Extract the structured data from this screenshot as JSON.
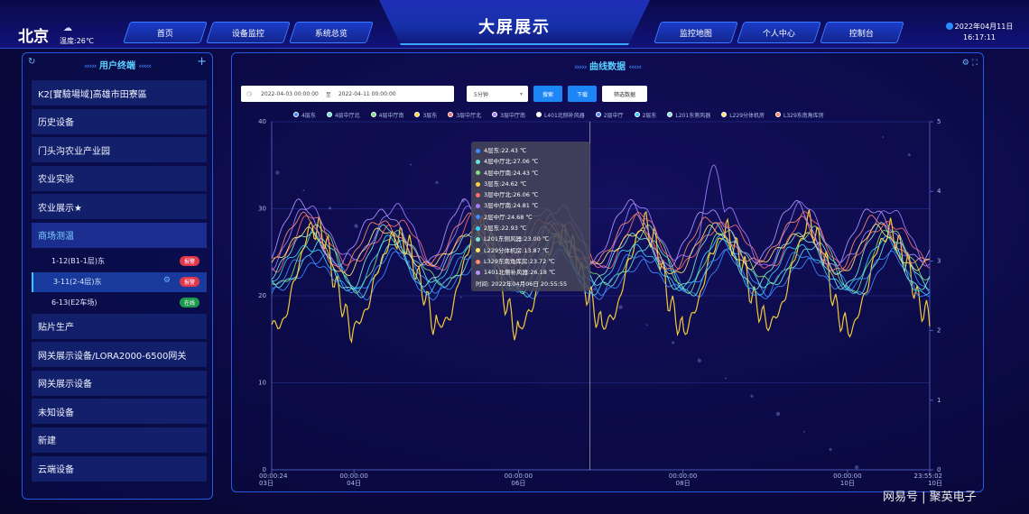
{
  "header": {
    "city": "北京",
    "temperature": "温度:26℃",
    "title": "大屏展示",
    "date": "2022年04月11日",
    "time": "16:17:11",
    "nav_left": [
      "首页",
      "设备监控",
      "系统总览"
    ],
    "nav_right": [
      "监控地图",
      "个人中心",
      "控制台"
    ]
  },
  "left_panel": {
    "title": "用户终端",
    "items": [
      {
        "label": "K2[實驗場域]高雄市田寮區"
      },
      {
        "label": "历史设备"
      },
      {
        "label": "门头沟农业产业园"
      },
      {
        "label": "农业实验"
      },
      {
        "label": "农业展示★"
      },
      {
        "label": "商场测温"
      }
    ],
    "sub_items": [
      {
        "label": "1-12(B1-1层)东",
        "badge": "报警",
        "badge_type": "red"
      },
      {
        "label": "3-11(2-4层)东",
        "badge": "报警",
        "badge_type": "red"
      },
      {
        "label": "6-13(E2车场)",
        "badge": "在线",
        "badge_type": "green"
      }
    ],
    "items_after": [
      {
        "label": "贴片生产"
      },
      {
        "label": "网关展示设备/LORA2000-6500网关"
      },
      {
        "label": "网关展示设备"
      },
      {
        "label": "未知设备"
      },
      {
        "label": "新建"
      },
      {
        "label": "云端设备"
      }
    ]
  },
  "right_panel": {
    "title": "曲线数据",
    "date_start": "2022-04-03 00:00:00",
    "date_sep": "至",
    "date_end": "2022-04-11 00:00:00",
    "interval": "5分钟",
    "btn_search": "搜索",
    "btn_download": "下载",
    "btn_filter": "筛选数据"
  },
  "chart_data": {
    "type": "line",
    "x_ticks": [
      {
        "time": "00:00:24",
        "day": "03日"
      },
      {
        "time": "00:00:00",
        "day": "04日"
      },
      {
        "time": "00:00:00",
        "day": "06日"
      },
      {
        "time": "00:00:00",
        "day": "08日"
      },
      {
        "time": "00:00:00",
        "day": "10日"
      },
      {
        "time": "23:55:02",
        "day": "10日"
      }
    ],
    "x_domain": [
      0,
      8
    ],
    "x_tick_values": [
      0,
      1,
      3,
      5,
      7,
      8
    ],
    "y_left_ticks": [
      "0",
      "10",
      "20",
      "30",
      "40"
    ],
    "y_left_range": [
      0,
      40
    ],
    "y_right_ticks": [
      "0",
      "1",
      "2",
      "3",
      "4",
      "5"
    ],
    "y_right_range": [
      0,
      5
    ],
    "series": [
      {
        "name": "4层东",
        "color": "#3d8bff",
        "tooltip_value": "22.43 ℃"
      },
      {
        "name": "4层中厅北",
        "color": "#63e8e2",
        "tooltip_value": "27.06 ℃"
      },
      {
        "name": "4层中厅南",
        "color": "#7ee07a",
        "tooltip_value": "24.43 ℃"
      },
      {
        "name": "3层东",
        "color": "#ffd43a",
        "tooltip_value": "24.62 ℃"
      },
      {
        "name": "3层中厅北",
        "color": "#ff6b6b",
        "tooltip_value": "26.06 ℃"
      },
      {
        "name": "3层中厅南",
        "color": "#a27bff",
        "tooltip_value": "24.81 ℃"
      },
      {
        "name": "L401北侧补风器",
        "color": "#ffffff",
        "tooltip_value": "",
        "legend_only": true
      },
      {
        "name": "2层中厅",
        "color": "#3d8bff",
        "tooltip_value": "24.68 ℃"
      },
      {
        "name": "2层东",
        "color": "#38d0ff",
        "tooltip_value": "22.93 ℃"
      },
      {
        "name": "L201东侧风器",
        "color": "#7fe6d9",
        "tooltip_value": "23.00 ℃"
      },
      {
        "name": "L229分体机房",
        "color": "#ffe56b",
        "tooltip_value": "13.87 ℃"
      },
      {
        "name": "L329东南角库房",
        "color": "#ff8a6b",
        "tooltip_value": "23.72 ℃"
      },
      {
        "name": "1401北侧补风器",
        "color": "#b493ff",
        "tooltip_value": "26.18 ℃"
      }
    ],
    "legend_labels": [
      "4层东",
      "4层中厅北",
      "4层中厅南",
      "3层东",
      "3层中厅北",
      "3层中厅南",
      "L401北侧补风器",
      "2层中厅",
      "2层东",
      "L201东侧风器",
      "L229分体机房",
      "L329东南角库房"
    ],
    "tooltip_labels": [
      "4层东",
      "4层中厅北",
      "4层中厅南",
      "3层东",
      "3层中厅北",
      "3层中厅南",
      "2层中厅",
      "2层东",
      "L201东侧风器",
      "L229分体机房",
      "L329东南角库房",
      "1401北侧补风器"
    ],
    "tooltip_time": "时间: 2022年04月06日 20:55:55",
    "tooltip_x": 3.87
  },
  "watermark": "网易号 | 聚英电子"
}
